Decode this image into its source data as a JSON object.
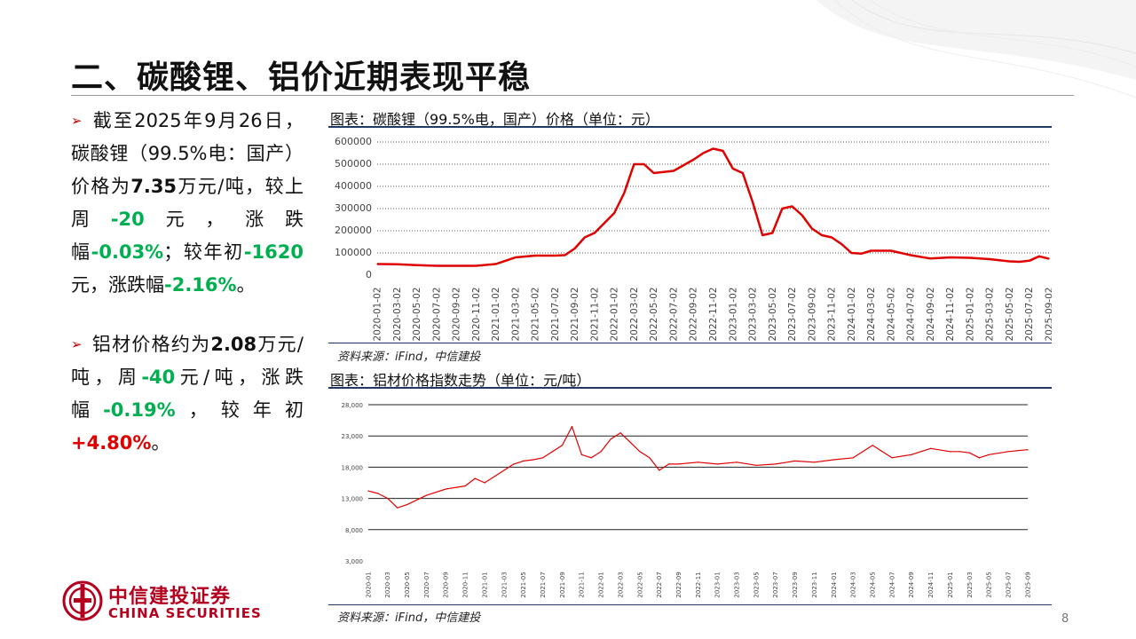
{
  "slide": {
    "title": "二、碳酸锂、铝价近期表现平稳",
    "page_number": "8"
  },
  "bullets": [
    {
      "parts": [
        {
          "text": "截至2025年9月26日，碳酸锂（99.5%电：国产）价格为",
          "style": "normal"
        },
        {
          "text": "7.35",
          "style": "bold"
        },
        {
          "text": "万元/吨，较上周",
          "style": "normal"
        },
        {
          "text": "-20",
          "style": "green"
        },
        {
          "text": "元，涨跌幅",
          "style": "normal"
        },
        {
          "text": "-0.03%",
          "style": "green"
        },
        {
          "text": "；较年初",
          "style": "normal"
        },
        {
          "text": "-1620",
          "style": "green"
        },
        {
          "text": "元，涨跌幅",
          "style": "normal"
        },
        {
          "text": "-2.16%",
          "style": "green"
        },
        {
          "text": "。",
          "style": "normal"
        }
      ]
    },
    {
      "parts": [
        {
          "text": "铝材价格约为",
          "style": "normal"
        },
        {
          "text": "2.08",
          "style": "bold"
        },
        {
          "text": "万元/吨，周",
          "style": "normal"
        },
        {
          "text": "-40",
          "style": "green"
        },
        {
          "text": "元/吨，涨跌幅",
          "style": "normal"
        },
        {
          "text": "-0.19%",
          "style": "green"
        },
        {
          "text": "，较年初",
          "style": "normal"
        },
        {
          "text": "+4.80%",
          "style": "red"
        },
        {
          "text": "。",
          "style": "normal"
        }
      ]
    }
  ],
  "chart1": {
    "title": "图表：碳酸锂（99.5%电，国产）价格（单位：元）",
    "source": "资料来源：iFind，中信建投"
  },
  "chart2": {
    "title": "图表：铝材价格指数走势（单位：元/吨）",
    "source": "资料来源：iFind，中信建投"
  },
  "logo": {
    "cn": "中信建投证券",
    "en": "CHINA SECURITIES",
    "icon": "china-securities-logo-icon"
  },
  "colors": {
    "accent_red": "#c00000",
    "line_red": "#e00000",
    "down_green": "#00b050",
    "rule_navy": "#1f3864",
    "brand_red": "#b4001e"
  },
  "chart_data": [
    {
      "type": "line",
      "title": "图表：碳酸锂（99.5%电，国产）价格（单位：元）",
      "ylim": [
        0,
        600000
      ],
      "yticks": [
        0,
        100000,
        200000,
        300000,
        400000,
        500000,
        600000
      ],
      "ytick_labels": [
        "0",
        "100000",
        "200000",
        "300000",
        "400000",
        "500000",
        "600000"
      ],
      "xlim": [
        "2020-01",
        "2025-09"
      ],
      "xtick_labels": [
        "2020-01-02",
        "2020-03-02",
        "2020-05-02",
        "2020-07-02",
        "2020-09-02",
        "2020-11-02",
        "2021-01-02",
        "2021-03-02",
        "2021-05-02",
        "2021-07-02",
        "2021-09-02",
        "2021-11-02",
        "2022-01-02",
        "2022-03-02",
        "2022-05-02",
        "2022-07-02",
        "2022-09-02",
        "2022-11-02",
        "2023-01-02",
        "2023-03-02",
        "2023-05-02",
        "2023-07-02",
        "2023-09-02",
        "2023-11-02",
        "2024-01-02",
        "2024-03-02",
        "2024-05-02",
        "2024-07-02",
        "2024-09-02",
        "2024-11-02",
        "2025-01-02",
        "2025-03-02",
        "2025-05-02",
        "2025-07-02",
        "2025-09-02"
      ],
      "grid": "horizontal-dotted",
      "series": [
        {
          "color": "#e00000",
          "x": [
            "2020-01",
            "2020-03",
            "2020-05",
            "2020-07",
            "2020-09",
            "2020-11",
            "2021-01",
            "2021-02",
            "2021-03",
            "2021-05",
            "2021-07",
            "2021-08",
            "2021-09",
            "2021-10",
            "2021-11",
            "2022-01",
            "2022-02",
            "2022-03",
            "2022-04",
            "2022-05",
            "2022-07",
            "2022-09",
            "2022-10",
            "2022-11",
            "2022-12",
            "2023-01",
            "2023-02",
            "2023-03",
            "2023-04",
            "2023-05",
            "2023-06",
            "2023-07",
            "2023-08",
            "2023-09",
            "2023-10",
            "2023-11",
            "2023-12",
            "2024-01",
            "2024-02",
            "2024-03",
            "2024-05",
            "2024-07",
            "2024-09",
            "2024-11",
            "2025-01",
            "2025-03",
            "2025-05",
            "2025-06",
            "2025-07",
            "2025-08",
            "2025-09"
          ],
          "y": [
            50000,
            49000,
            45000,
            42000,
            42000,
            42000,
            50000,
            65000,
            80000,
            88000,
            88000,
            90000,
            120000,
            170000,
            190000,
            280000,
            370000,
            500000,
            500000,
            460000,
            470000,
            520000,
            550000,
            570000,
            560000,
            480000,
            460000,
            330000,
            180000,
            190000,
            300000,
            310000,
            270000,
            210000,
            180000,
            170000,
            140000,
            100000,
            97000,
            110000,
            110000,
            90000,
            75000,
            80000,
            78000,
            72000,
            62000,
            60000,
            65000,
            85000,
            73500
          ]
        }
      ]
    },
    {
      "type": "line",
      "title": "图表：铝材价格指数走势（单位：元/吨）",
      "ylim": [
        3000,
        28000
      ],
      "yticks": [
        3000,
        8000,
        13000,
        18000,
        23000,
        28000
      ],
      "ytick_labels": [
        "3,000",
        "8,000",
        "13,000",
        "18,000",
        "23,000",
        "28,000"
      ],
      "xlim": [
        "2020-01",
        "2025-09"
      ],
      "xtick_labels": [
        "2020-01",
        "2020-03",
        "2020-05",
        "2020-07",
        "2020-09",
        "2020-11",
        "2021-01",
        "2021-03",
        "2021-05",
        "2021-07",
        "2021-09",
        "2021-11",
        "2022-01",
        "2022-03",
        "2022-05",
        "2022-07",
        "2022-09",
        "2022-11",
        "2023-01",
        "2023-03",
        "2023-05",
        "2023-07",
        "2023-09",
        "2023-11",
        "2024-01",
        "2024-03",
        "2024-05",
        "2024-07",
        "2024-09",
        "2024-11",
        "2025-01",
        "2025-03",
        "2025-05",
        "2025-07",
        "2025-09"
      ],
      "grid": "horizontal-solid",
      "series": [
        {
          "color": "#e00000",
          "x": [
            "2020-01",
            "2020-02",
            "2020-03",
            "2020-04",
            "2020-05",
            "2020-07",
            "2020-09",
            "2020-11",
            "2020-12",
            "2021-01",
            "2021-02",
            "2021-03",
            "2021-04",
            "2021-05",
            "2021-06",
            "2021-07",
            "2021-08",
            "2021-09",
            "2021-10",
            "2021-11",
            "2021-12",
            "2022-01",
            "2022-02",
            "2022-03",
            "2022-04",
            "2022-05",
            "2022-06",
            "2022-07",
            "2022-08",
            "2022-09",
            "2022-11",
            "2023-01",
            "2023-03",
            "2023-05",
            "2023-07",
            "2023-09",
            "2023-11",
            "2024-01",
            "2024-03",
            "2024-05",
            "2024-06",
            "2024-07",
            "2024-09",
            "2024-11",
            "2025-01",
            "2025-02",
            "2025-03",
            "2025-04",
            "2025-05",
            "2025-07",
            "2025-09"
          ],
          "y": [
            14200,
            13800,
            13000,
            11500,
            12000,
            13500,
            14500,
            15000,
            16200,
            15500,
            16500,
            17500,
            18500,
            19000,
            19200,
            19500,
            20500,
            21500,
            24500,
            20000,
            19500,
            20500,
            22500,
            23500,
            22000,
            20500,
            19500,
            17500,
            18500,
            18500,
            18800,
            18500,
            18800,
            18300,
            18500,
            19000,
            18800,
            19200,
            19500,
            21500,
            20500,
            19500,
            20000,
            21000,
            20500,
            20500,
            20300,
            19500,
            20000,
            20500,
            20800
          ]
        }
      ]
    }
  ]
}
